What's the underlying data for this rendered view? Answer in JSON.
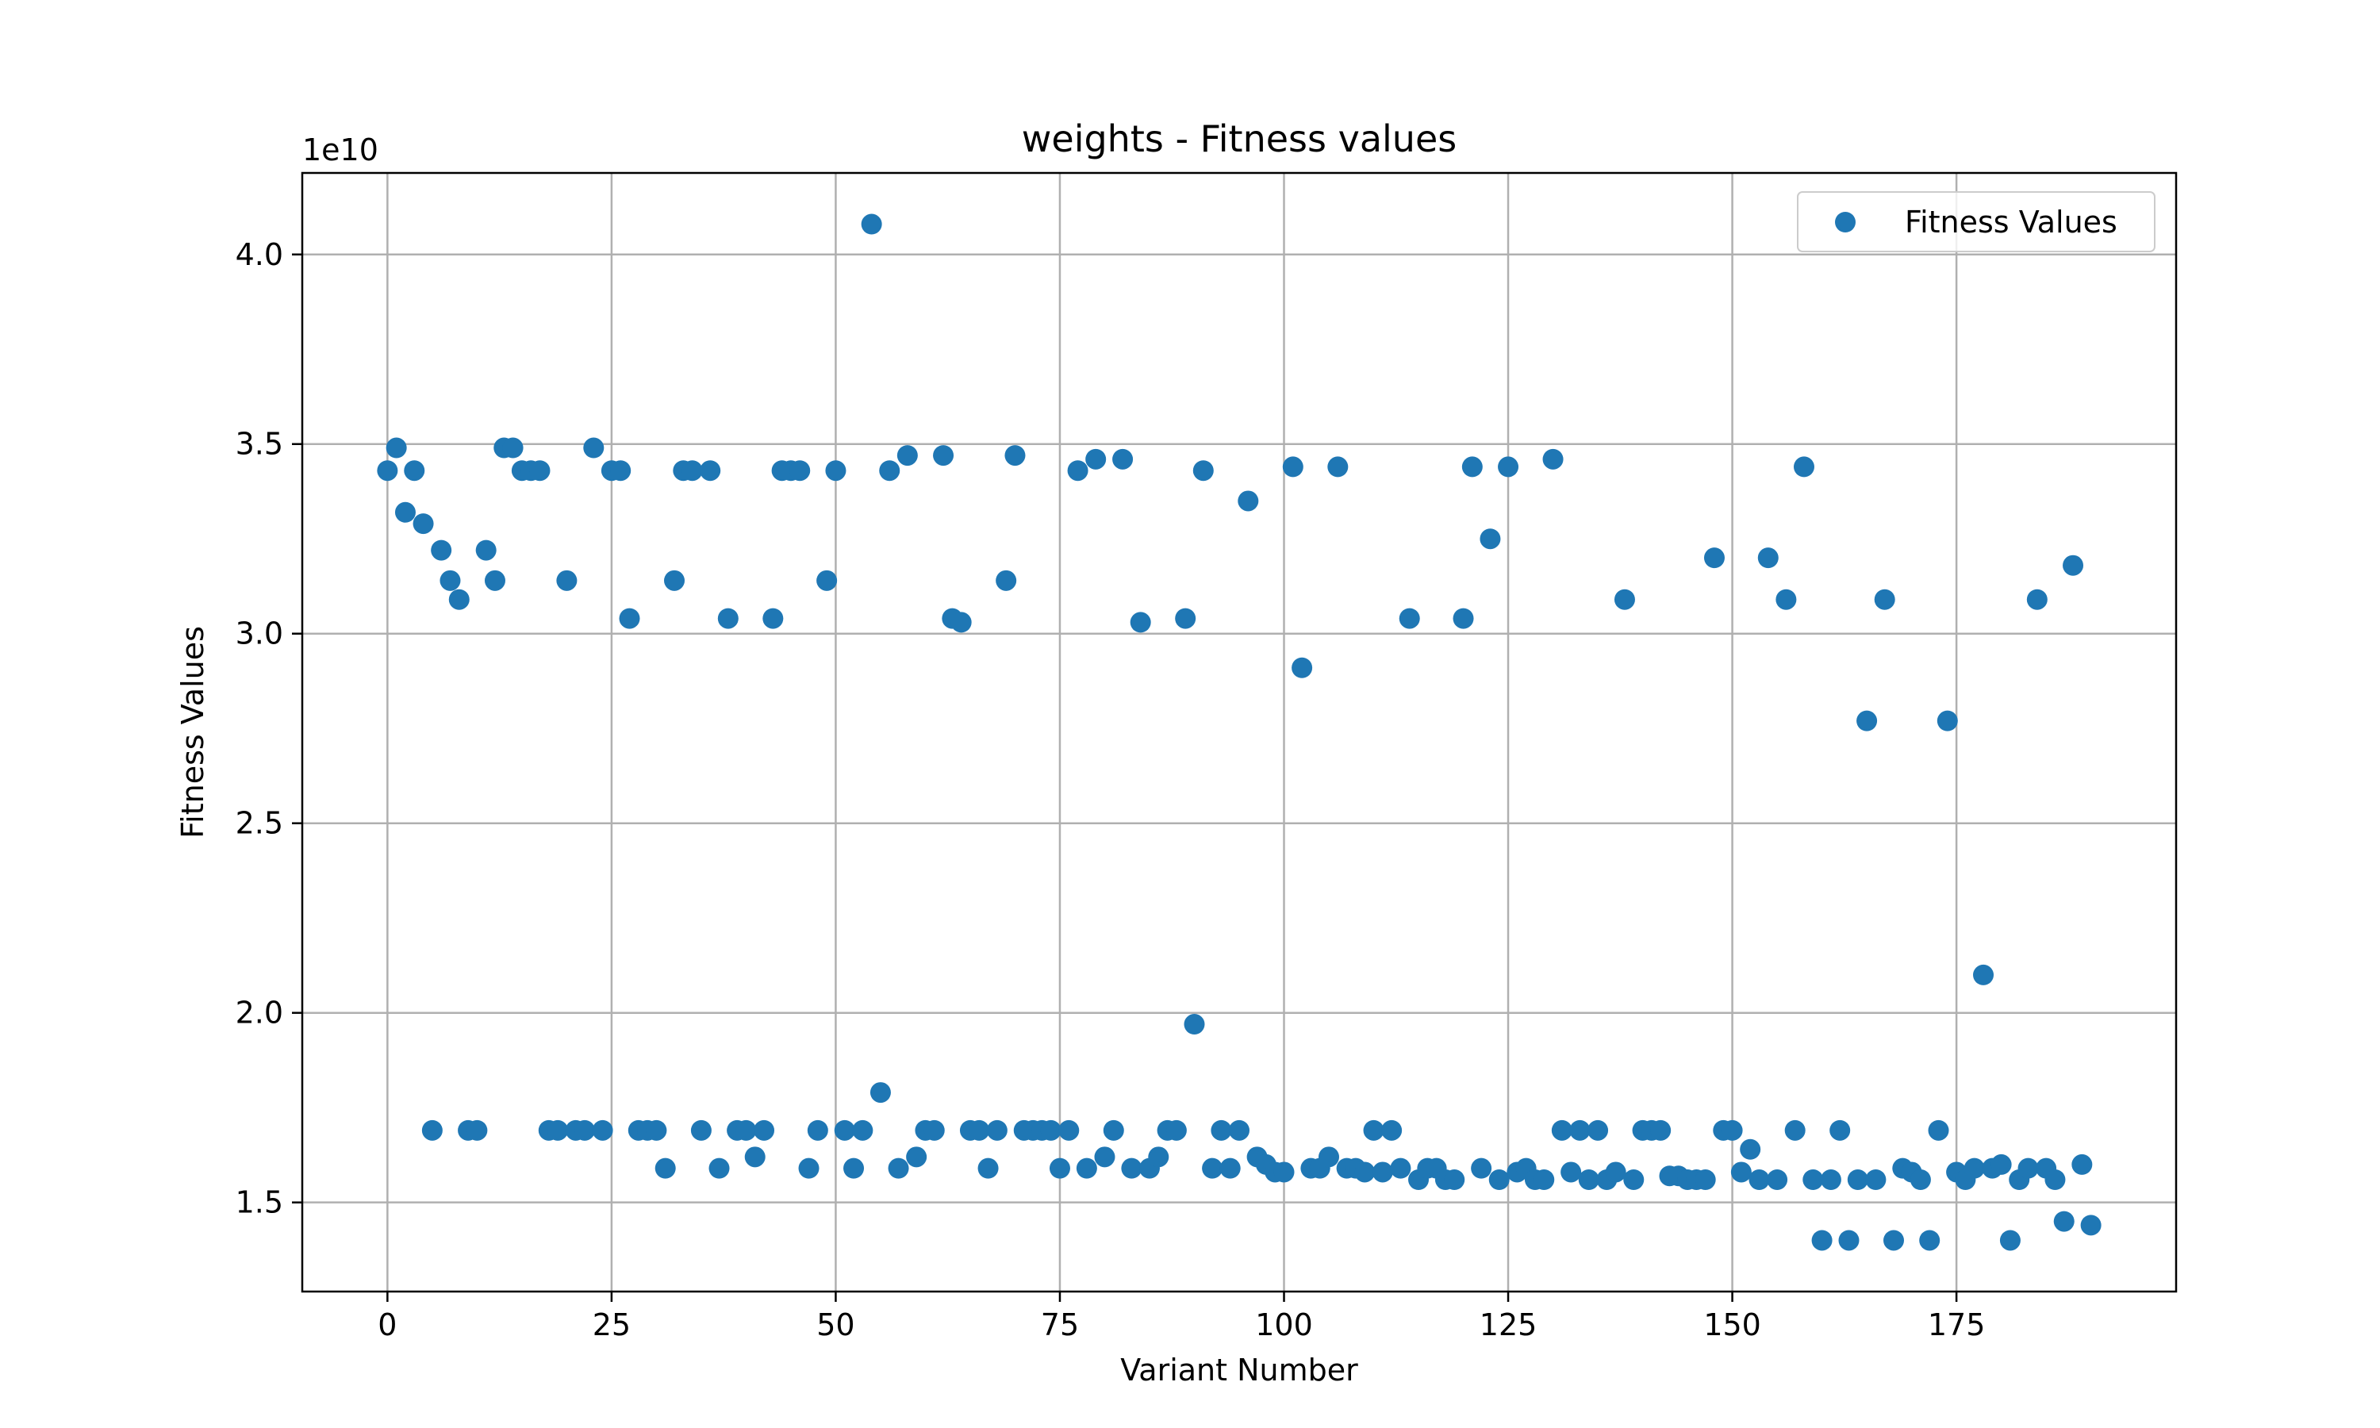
{
  "chart_data": {
    "type": "scatter",
    "title": "weights - Fitness values",
    "xlabel": "Variant Number",
    "ylabel": "Fitness Values",
    "y_multiplier_label": "1e10",
    "xlim": [
      -9.5,
      199.5
    ],
    "ylim": [
      1.265,
      4.215
    ],
    "x_ticks": [
      0,
      25,
      50,
      75,
      100,
      125,
      150,
      175
    ],
    "x_tick_labels": [
      "0",
      "25",
      "50",
      "75",
      "100",
      "125",
      "150",
      "175"
    ],
    "y_ticks": [
      1.5,
      2.0,
      2.5,
      3.0,
      3.5,
      4.0
    ],
    "y_tick_labels": [
      "1.5",
      "2.0",
      "2.5",
      "3.0",
      "3.5",
      "4.0"
    ],
    "grid": true,
    "legend": {
      "position": "top-right",
      "entries": [
        "Fitness Values"
      ]
    },
    "series": [
      {
        "name": "Fitness Values",
        "color": "#1f77b4",
        "x": [
          0,
          1,
          2,
          3,
          4,
          5,
          6,
          7,
          8,
          9,
          10,
          11,
          12,
          13,
          14,
          15,
          16,
          17,
          18,
          19,
          20,
          21,
          22,
          23,
          24,
          25,
          26,
          27,
          28,
          29,
          30,
          31,
          32,
          33,
          34,
          35,
          36,
          37,
          38,
          39,
          40,
          41,
          42,
          43,
          44,
          45,
          46,
          47,
          48,
          49,
          50,
          51,
          52,
          53,
          54,
          55,
          56,
          57,
          58,
          59,
          60,
          61,
          62,
          63,
          64,
          65,
          66,
          67,
          68,
          69,
          70,
          71,
          72,
          73,
          74,
          75,
          76,
          77,
          78,
          79,
          80,
          81,
          82,
          83,
          84,
          85,
          86,
          87,
          88,
          89,
          90,
          91,
          92,
          93,
          94,
          95,
          96,
          97,
          98,
          99,
          100,
          101,
          102,
          103,
          104,
          105,
          106,
          107,
          108,
          109,
          110,
          111,
          112,
          113,
          114,
          115,
          116,
          117,
          118,
          119,
          120,
          121,
          122,
          123,
          124,
          125,
          126,
          127,
          128,
          129,
          130,
          131,
          132,
          133,
          134,
          135,
          136,
          137,
          138,
          139,
          140,
          141,
          142,
          143,
          144,
          145,
          146,
          147,
          148,
          149,
          150,
          151,
          152,
          153,
          154,
          155,
          156,
          157,
          158,
          159,
          160,
          161,
          162,
          163,
          164,
          165,
          166,
          167,
          168,
          169,
          170,
          171,
          172,
          173,
          174,
          175,
          176,
          177,
          178,
          179,
          180,
          181,
          182,
          183,
          184,
          185,
          186,
          187,
          188,
          189,
          190
        ],
        "y": [
          3.43,
          3.49,
          3.32,
          3.43,
          3.29,
          1.69,
          3.22,
          3.14,
          3.09,
          1.69,
          1.69,
          3.22,
          3.14,
          3.49,
          3.49,
          3.43,
          3.43,
          3.43,
          1.69,
          1.69,
          3.14,
          1.69,
          1.69,
          3.49,
          1.69,
          3.43,
          3.43,
          3.04,
          1.69,
          1.69,
          1.69,
          1.59,
          3.14,
          3.43,
          3.43,
          1.69,
          3.43,
          1.59,
          3.04,
          1.69,
          1.69,
          1.62,
          1.69,
          3.04,
          3.43,
          3.43,
          3.43,
          1.59,
          1.69,
          3.14,
          3.43,
          1.69,
          1.59,
          1.69,
          4.08,
          1.79,
          3.43,
          1.59,
          3.47,
          1.62,
          1.69,
          1.69,
          3.47,
          3.04,
          3.03,
          1.69,
          1.69,
          1.59,
          1.69,
          3.14,
          3.47,
          1.69,
          1.69,
          1.69,
          1.69,
          1.59,
          1.69,
          3.43,
          1.59,
          3.46,
          1.62,
          1.69,
          3.46,
          1.59,
          3.03,
          1.59,
          1.62,
          1.69,
          1.69,
          3.04,
          1.97,
          3.43,
          1.59,
          1.69,
          1.59,
          1.69,
          3.35,
          1.62,
          1.6,
          1.58,
          1.58,
          3.44,
          2.91,
          1.59,
          1.59,
          1.62,
          3.44,
          1.59,
          1.59,
          1.58,
          1.69,
          1.58,
          1.69,
          1.59,
          3.04,
          1.56,
          1.59,
          1.59,
          1.56,
          1.56,
          3.04,
          3.44,
          1.59,
          3.25,
          1.56,
          3.44,
          1.58,
          1.59,
          1.56,
          1.56,
          3.46,
          1.69,
          1.58,
          1.69,
          1.56,
          1.69,
          1.56,
          1.58,
          3.09,
          1.56,
          1.69,
          1.69,
          1.69,
          1.57,
          1.57,
          1.56,
          1.56,
          1.56,
          3.2,
          1.69,
          1.69,
          1.58,
          1.64,
          1.56,
          3.2,
          1.56,
          3.09,
          1.69,
          3.44,
          1.56,
          1.4,
          1.56,
          1.69,
          1.4,
          1.56,
          2.77,
          1.56,
          3.09,
          1.4,
          1.59,
          1.58,
          1.56,
          1.4,
          1.69,
          2.77,
          1.58,
          1.56,
          1.59,
          2.1,
          1.59,
          1.6,
          1.4,
          1.56,
          1.59,
          3.09,
          1.59,
          1.56,
          1.45,
          3.18,
          1.6,
          1.44
        ]
      }
    ]
  }
}
